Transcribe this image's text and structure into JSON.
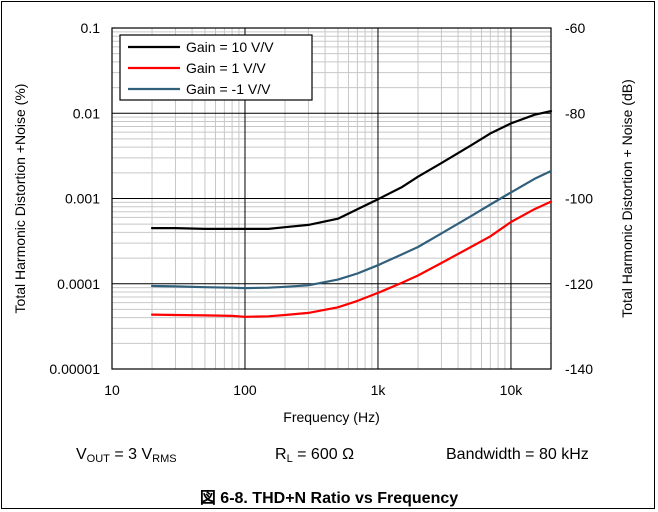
{
  "chart_data": {
    "type": "line",
    "x_scale": "log",
    "y_scale": "log",
    "xlim": [
      10,
      20000
    ],
    "ylim": [
      1e-05,
      0.1
    ],
    "y2lim": [
      -140,
      -60
    ],
    "grid": true,
    "legend_position": "top-left",
    "xlabel": "Frequency (Hz)",
    "ylabel": "Total Harmonic Distortion +Noise (%)",
    "y2label": "Total Harmonic Distortion + Noise (dB)",
    "x_ticks": [
      {
        "v": 10,
        "label": "10"
      },
      {
        "v": 100,
        "label": "100"
      },
      {
        "v": 1000,
        "label": "1k"
      },
      {
        "v": 10000,
        "label": "10k"
      }
    ],
    "y_ticks": [
      {
        "v": 0.1,
        "label": "0.1"
      },
      {
        "v": 0.01,
        "label": "0.01"
      },
      {
        "v": 0.001,
        "label": "0.001"
      },
      {
        "v": 0.0001,
        "label": "0.0001"
      },
      {
        "v": 1e-05,
        "label": "0.00001"
      }
    ],
    "y2_ticks": [
      {
        "v": -60,
        "label": "-60"
      },
      {
        "v": -80,
        "label": "-80"
      },
      {
        "v": -100,
        "label": "-100"
      },
      {
        "v": -120,
        "label": "-120"
      },
      {
        "v": -140,
        "label": "-140"
      }
    ],
    "series": [
      {
        "name": "Gain = 10 V/V",
        "color": "#000000",
        "x": [
          20,
          30,
          50,
          80,
          100,
          150,
          200,
          300,
          500,
          700,
          1000,
          1500,
          2000,
          3000,
          5000,
          7000,
          10000,
          15000,
          20000
        ],
        "y": [
          0.00045,
          0.00045,
          0.00044,
          0.00044,
          0.00044,
          0.00044,
          0.00046,
          0.00049,
          0.00058,
          0.00075,
          0.00098,
          0.00135,
          0.0018,
          0.0026,
          0.0042,
          0.0058,
          0.0076,
          0.0096,
          0.0106
        ]
      },
      {
        "name": "Gain = 1 V/V",
        "color": "#ff0000",
        "x": [
          20,
          30,
          50,
          80,
          100,
          150,
          200,
          300,
          500,
          700,
          1000,
          1500,
          2000,
          3000,
          5000,
          7000,
          10000,
          15000,
          20000
        ],
        "y": [
          4.35e-05,
          4.3e-05,
          4.25e-05,
          4.2e-05,
          4.1e-05,
          4.15e-05,
          4.3e-05,
          4.55e-05,
          5.3e-05,
          6.3e-05,
          7.8e-05,
          0.000102,
          0.000125,
          0.000175,
          0.00027,
          0.00036,
          0.00053,
          0.00075,
          0.00092
        ]
      },
      {
        "name": "Gain = -1 V/V",
        "color": "#31607c",
        "x": [
          20,
          30,
          50,
          80,
          100,
          150,
          200,
          300,
          500,
          700,
          1000,
          1500,
          2000,
          3000,
          5000,
          7000,
          10000,
          15000,
          20000
        ],
        "y": [
          9.4e-05,
          9.3e-05,
          9.1e-05,
          9e-05,
          8.9e-05,
          9e-05,
          9.2e-05,
          9.6e-05,
          0.000112,
          0.000132,
          0.000165,
          0.00022,
          0.00027,
          0.00039,
          0.00062,
          0.00085,
          0.00118,
          0.0017,
          0.0021
        ]
      }
    ]
  },
  "conditions": {
    "vout_main": "V",
    "vout_sub": "OUT",
    "vout_mid": " = 3 V",
    "vout_unit_sub": "RMS",
    "rl_main": "R",
    "rl_sub": "L",
    "rl_value": " = 600 Ω",
    "bandwidth": "Bandwidth = 80 kHz"
  },
  "caption": "図 6-8. THD+N Ratio vs Frequency"
}
